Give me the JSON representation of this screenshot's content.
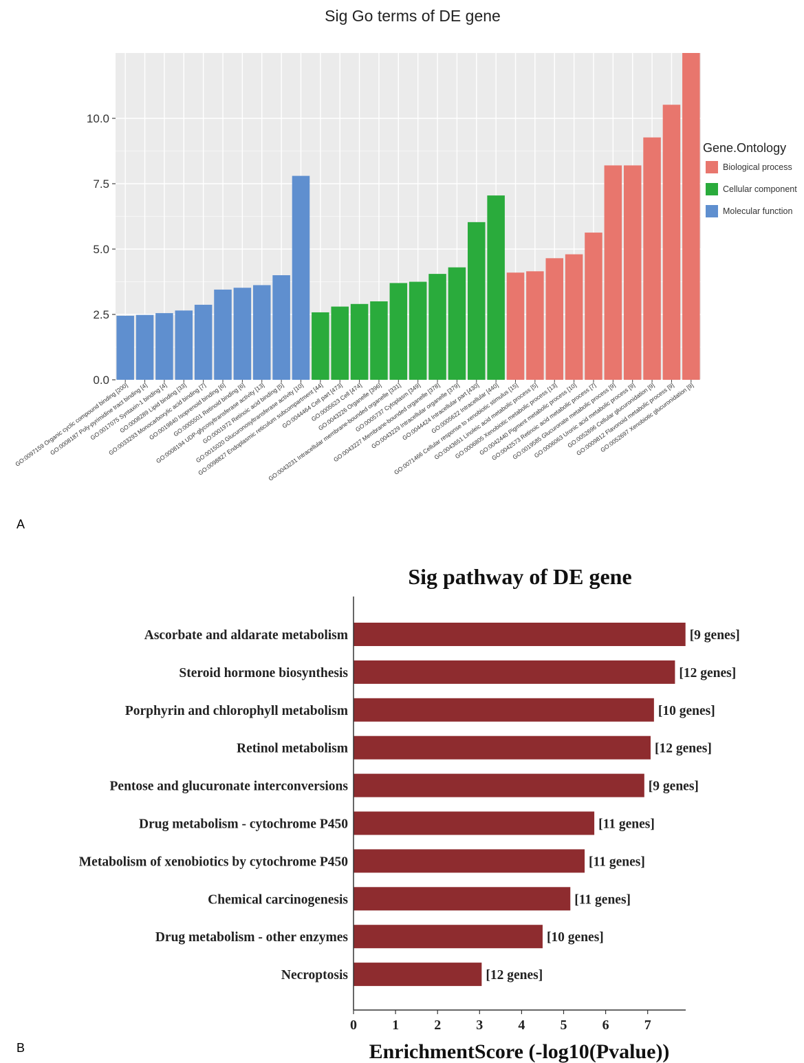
{
  "panels": {
    "a": "A",
    "b": "B"
  },
  "chart_data": [
    {
      "type": "bar",
      "title": "Sig Go terms of DE gene",
      "xlabel": "",
      "ylabel": "",
      "ylim": [
        0,
        12.5
      ],
      "yticks": [
        "0.0",
        "2.5",
        "5.0",
        "7.5",
        "10.0"
      ],
      "ytick_values": [
        0,
        2.5,
        5,
        7.5,
        10
      ],
      "grid": true,
      "legend": {
        "title": "Gene.Ontology",
        "position": "right",
        "items": [
          {
            "name": "Biological process",
            "color": "#e8766d"
          },
          {
            "name": "Cellular component",
            "color": "#2aab3c"
          },
          {
            "name": "Molecular function",
            "color": "#5f8fcf"
          }
        ]
      },
      "categories": [
        "GO:0097159 Organic cyclic compound binding [200]",
        "GO:0008187 Poly-pyrimidine tract binding [4]",
        "GO:0017075 Syntaxin-1 binding [4]",
        "GO:0008289 Lipid binding [33]",
        "GO:0033293 Monocarboxylic acid binding [7]",
        "GO:0019840 Isoprenoid binding [6]",
        "GO:0005501 Retinoid binding [6]",
        "GO:0008194 UDP-glycosyltransferase activity [13]",
        "GO:0001972 Retinoic acid binding [5]",
        "GO:0015020 Glucuronosyltransferase activity [10]",
        "GO:0098827 Endoplasmic reticulum subcompartment [44]",
        "GO:0044464 Cell part [473]",
        "GO:0005623 Cell [474]",
        "GO:0043226 Organelle [396]",
        "GO:0043231 Intracellular membrane-bounded organelle [331]",
        "GO:0005737 Cytoplasm [349]",
        "GO:0043227 Membrane-bounded organelle [378]",
        "GO:0043229 Intracellular organelle [379]",
        "GO:0044424 Intracellular part [430]",
        "GO:0005622 Intracellular [440]",
        "GO:0071466 Cellular response to xenobiotic stimulus [15]",
        "GO:0043651 Linoleic acid metabolic process [5]",
        "GO:0006805 Xenobiotic metabolic process [13]",
        "GO:0042440 Pigment metabolic process [10]",
        "GO:0042573 Retinoic acid metabolic process [7]",
        "GO:0019585 Glucuronate metabolic process [9]",
        "GO:0006063 Uronic acid metabolic process [9]",
        "GO:0052696 Cellular glucuronidation [9]",
        "GO:0009812 Flavonoid metabolic process [9]",
        "GO:0052697 Xenobiotic glucuronidation [9]"
      ],
      "values": [
        2.45,
        2.48,
        2.55,
        2.65,
        2.87,
        3.45,
        3.52,
        3.62,
        4.0,
        7.8,
        2.58,
        2.8,
        2.9,
        3.0,
        3.7,
        3.75,
        4.05,
        4.3,
        6.03,
        7.05,
        4.1,
        4.15,
        4.65,
        4.8,
        5.63,
        8.2,
        8.2,
        9.27,
        10.52,
        12.5
      ],
      "groups": [
        "Molecular function",
        "Molecular function",
        "Molecular function",
        "Molecular function",
        "Molecular function",
        "Molecular function",
        "Molecular function",
        "Molecular function",
        "Molecular function",
        "Molecular function",
        "Cellular component",
        "Cellular component",
        "Cellular component",
        "Cellular component",
        "Cellular component",
        "Cellular component",
        "Cellular component",
        "Cellular component",
        "Cellular component",
        "Cellular component",
        "Biological process",
        "Biological process",
        "Biological process",
        "Biological process",
        "Biological process",
        "Biological process",
        "Biological process",
        "Biological process",
        "Biological process",
        "Biological process"
      ]
    },
    {
      "type": "bar",
      "orientation": "horizontal",
      "title": "Sig pathway of DE gene",
      "xlabel": "EnrichmentScore (-log10(Pvalue))",
      "ylabel": "",
      "xlim": [
        0,
        7.9
      ],
      "xticks": [
        "0",
        "1",
        "2",
        "3",
        "4",
        "5",
        "6",
        "7"
      ],
      "xtick_values": [
        0,
        1,
        2,
        3,
        4,
        5,
        6,
        7
      ],
      "bar_color": "#8e2c2f",
      "categories": [
        "Ascorbate and aldarate metabolism",
        "Steroid hormone biosynthesis",
        "Porphyrin and chlorophyll metabolism",
        "Retinol metabolism",
        "Pentose and glucuronate interconversions",
        "Drug metabolism - cytochrome P450",
        "Metabolism of xenobiotics by cytochrome P450",
        "Chemical carcinogenesis",
        "Drug metabolism - other enzymes",
        "Necroptosis"
      ],
      "values": [
        7.9,
        7.65,
        7.15,
        7.07,
        6.92,
        5.73,
        5.5,
        5.16,
        4.5,
        3.05
      ],
      "labels": [
        "[9 genes]",
        "[12 genes]",
        "[10 genes]",
        "[12 genes]",
        "[9 genes]",
        "[11 genes]",
        "[11 genes]",
        "[11 genes]",
        "[10 genes]",
        "[12 genes]"
      ]
    }
  ]
}
